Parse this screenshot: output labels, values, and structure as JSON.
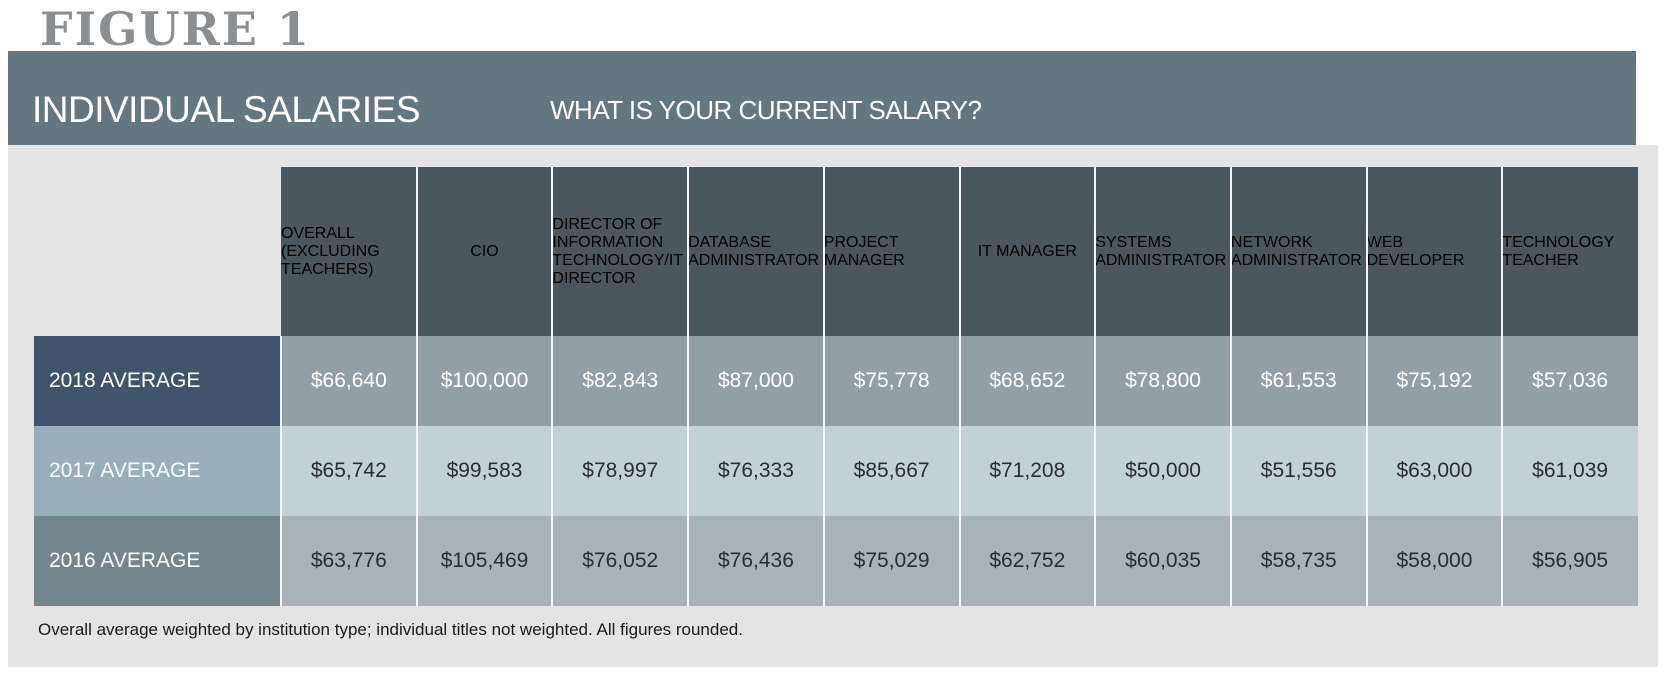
{
  "figure_label": "FIGURE 1",
  "chart_data": {
    "type": "table",
    "title": "INDIVIDUAL SALARIES",
    "subtitle": "WHAT IS YOUR CURRENT SALARY?",
    "columns": [
      "OVERALL\n(EXCLUDING\nTEACHERS)",
      "CIO",
      "DIRECTOR OF\nINFORMATION\nTECHNOLOGY/IT\nDIRECTOR",
      "DATABASE\nADMINISTRATOR",
      "PROJECT\nMANAGER",
      "IT MANAGER",
      "SYSTEMS\nADMINISTRATOR",
      "NETWORK\nADMINISTRATOR",
      "WEB DEVELOPER",
      "TECHNOLOGY\nTEACHER"
    ],
    "rows": [
      {
        "label": "2018 AVERAGE",
        "label_color": "#42536d",
        "cell_color": "#929fa7",
        "text_color": "#ffffff",
        "values": [
          "$66,640",
          "$100,000",
          "$82,843",
          "$87,000",
          "$75,778",
          "$68,652",
          "$78,800",
          "$61,553",
          "$75,192",
          "$57,036"
        ]
      },
      {
        "label": "2017 AVERAGE",
        "label_color": "#98afba",
        "cell_color": "#c2d0d8",
        "text_color": "#2a2e31",
        "values": [
          "$65,742",
          "$99,583",
          "$78,997",
          "$76,333",
          "$85,667",
          "$71,208",
          "$50,000",
          "$51,556",
          "$63,000",
          "$61,039"
        ]
      },
      {
        "label": "2016 AVERAGE",
        "label_color": "#74858d",
        "cell_color": "#a8b3b9",
        "text_color": "#2a2e31",
        "values": [
          "$63,776",
          "$105,469",
          "$76,052",
          "$76,436",
          "$75,029",
          "$62,752",
          "$60,035",
          "$58,735",
          "$58,000",
          "$56,905"
        ]
      }
    ],
    "footnote": "Overall average weighted by institution type; individual titles not weighted. All figures rounded."
  }
}
